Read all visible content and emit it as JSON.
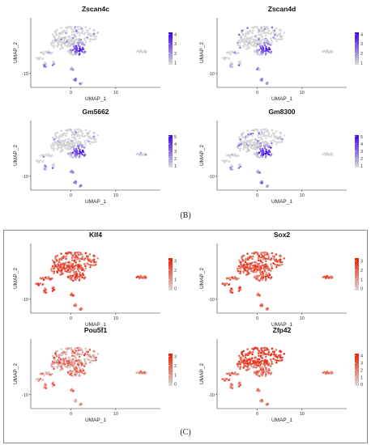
{
  "panels": [
    {
      "label": "(B)"
    },
    {
      "label": "(C)"
    }
  ],
  "chart_data": [
    {
      "type": "scatter",
      "panel": "B",
      "title": "Zscan4c",
      "xlabel": "UMAP_1",
      "ylabel": "UMAP_2",
      "xticks": [
        "0",
        "10"
      ],
      "yticks": [
        "-10"
      ],
      "xlim": [
        -9,
        20
      ],
      "ylim": [
        -16,
        14
      ],
      "legend": {
        "ticks": [
          "1",
          "2",
          "3",
          "4"
        ],
        "range": [
          0.8,
          4.2
        ],
        "low_color": "#d9d9d9",
        "high_color": "#3b00f0"
      },
      "hotspot": "bottom",
      "max_expression": 4
    },
    {
      "type": "scatter",
      "panel": "B",
      "title": "Zscan4d",
      "xlabel": "UMAP_1",
      "ylabel": "UMAP_2",
      "xticks": [
        "0",
        "10"
      ],
      "yticks": [
        "-10"
      ],
      "xlim": [
        -9,
        20
      ],
      "ylim": [
        -16,
        14
      ],
      "legend": {
        "ticks": [
          "1",
          "2",
          "3",
          "4"
        ],
        "range": [
          0.8,
          4.2
        ],
        "low_color": "#d9d9d9",
        "high_color": "#3b00f0"
      },
      "hotspot": "bottom",
      "max_expression": 4
    },
    {
      "type": "scatter",
      "panel": "B",
      "title": "Gm5662",
      "xlabel": "UMAP_1",
      "ylabel": "UMAP_2",
      "xticks": [
        "0",
        "10"
      ],
      "yticks": [
        "-10"
      ],
      "xlim": [
        -9,
        20
      ],
      "ylim": [
        -16,
        14
      ],
      "legend": {
        "ticks": [
          "1",
          "2",
          "3",
          "4",
          "5"
        ],
        "range": [
          0.8,
          5.2
        ],
        "low_color": "#d9d9d9",
        "high_color": "#3b00f0"
      },
      "hotspot": "bottom",
      "max_expression": 5
    },
    {
      "type": "scatter",
      "panel": "B",
      "title": "Gm8300",
      "xlabel": "UMAP_1",
      "ylabel": "UMAP_2",
      "xticks": [
        "0",
        "10"
      ],
      "yticks": [
        "-10"
      ],
      "xlim": [
        -9,
        20
      ],
      "ylim": [
        -16,
        14
      ],
      "legend": {
        "ticks": [
          "1",
          "2",
          "3",
          "4",
          "5"
        ],
        "range": [
          0.8,
          5.2
        ],
        "low_color": "#d9d9d9",
        "high_color": "#3b00f0"
      },
      "hotspot": "bottom",
      "max_expression": 5
    },
    {
      "type": "scatter",
      "panel": "C",
      "title": "Klf4",
      "xlabel": "UMAP_1",
      "ylabel": "UMAP_2",
      "xticks": [
        "0",
        "10"
      ],
      "yticks": [
        "-10"
      ],
      "xlim": [
        -9,
        20
      ],
      "ylim": [
        -16,
        14
      ],
      "legend": {
        "ticks": [
          "0",
          "1",
          "2",
          "3"
        ],
        "range": [
          -0.2,
          3.3
        ],
        "low_color": "#d9d9d9",
        "high_color": "#ee1c00"
      },
      "hotspot": "broad",
      "max_expression": 3
    },
    {
      "type": "scatter",
      "panel": "C",
      "title": "Sox2",
      "xlabel": "UMAP_1",
      "ylabel": "UMAP_2",
      "xticks": [
        "0",
        "10"
      ],
      "yticks": [
        "-10"
      ],
      "xlim": [
        -9,
        20
      ],
      "ylim": [
        -16,
        14
      ],
      "legend": {
        "ticks": [
          "0",
          "1",
          "2",
          "3"
        ],
        "range": [
          -0.2,
          3.3
        ],
        "low_color": "#d9d9d9",
        "high_color": "#ee1c00"
      },
      "hotspot": "broad",
      "max_expression": 3
    },
    {
      "type": "scatter",
      "panel": "C",
      "title": "Pou5f1",
      "xlabel": "UMAP_1",
      "ylabel": "UMAP_2",
      "xticks": [
        "0",
        "10"
      ],
      "yticks": [
        "-10"
      ],
      "xlim": [
        -9,
        20
      ],
      "ylim": [
        -16,
        14
      ],
      "legend": {
        "ticks": [
          "0",
          "1",
          "2",
          "3"
        ],
        "range": [
          -0.2,
          3.3
        ],
        "low_color": "#d9d9d9",
        "high_color": "#ee1c00"
      },
      "hotspot": "patchy",
      "max_expression": 3
    },
    {
      "type": "scatter",
      "panel": "C",
      "title": "Zfp42",
      "xlabel": "UMAP_1",
      "ylabel": "UMAP_2",
      "xticks": [
        "0",
        "10"
      ],
      "yticks": [
        "-10"
      ],
      "xlim": [
        -9,
        20
      ],
      "ylim": [
        -16,
        14
      ],
      "legend": {
        "ticks": [
          "0",
          "1",
          "2",
          "3",
          "4"
        ],
        "range": [
          -0.2,
          4.3
        ],
        "low_color": "#d9d9d9",
        "high_color": "#ee1c00"
      },
      "hotspot": "top",
      "max_expression": 4
    }
  ]
}
